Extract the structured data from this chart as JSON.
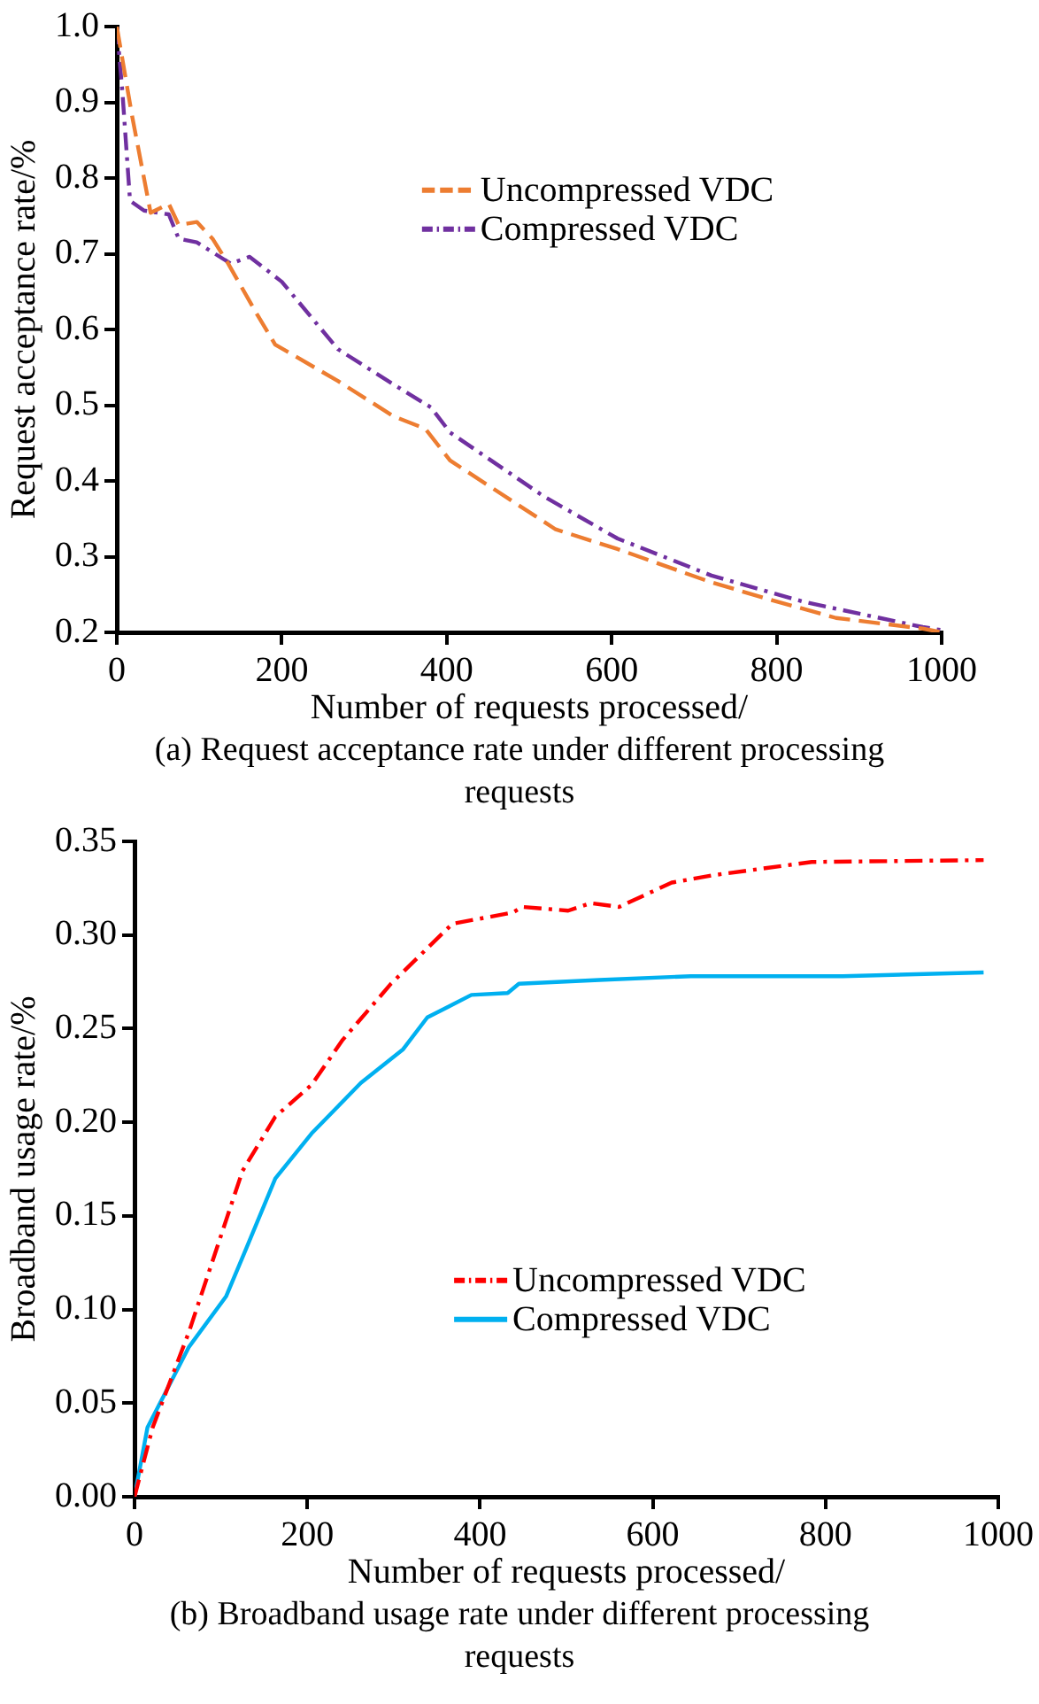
{
  "chart_data": [
    {
      "type": "line",
      "xlabel": "Number of requests processed/",
      "ylabel": "Request acceptance rate/%",
      "annotations": [
        "(a) Request acceptance rate under different processing requests"
      ],
      "xlim": [
        0,
        1000
      ],
      "xticks": [
        0,
        200,
        400,
        600,
        800,
        1000
      ],
      "ylim": [
        0.2,
        1.0
      ],
      "yticks": [
        {
          "value": 0.2,
          "label": "0.2"
        },
        {
          "value": 0.3,
          "label": "0.3"
        },
        {
          "value": 0.4,
          "label": "0.4"
        },
        {
          "value": 0.5,
          "label": "0.5"
        },
        {
          "value": 0.6,
          "label": "0.6"
        },
        {
          "value": 0.7,
          "label": "0.7"
        },
        {
          "value": 0.8,
          "label": "0.8"
        },
        {
          "value": 0.9,
          "label": "0.9"
        },
        {
          "value": 1.0,
          "label": "1.0"
        }
      ],
      "grid": false,
      "legend": "top right",
      "series": [
        {
          "name": "Uncompressed VDC",
          "color": "#ed7d31",
          "line_style": "dashed",
          "x": [
            0,
            18,
            41,
            63,
            75,
            97,
            116,
            135,
            170,
            192,
            268,
            336,
            374,
            404,
            532,
            607,
            721,
            796,
            872,
            977,
            1000
          ],
          "values": [
            1.0,
            0.885,
            0.754,
            0.766,
            0.738,
            0.742,
            0.72,
            0.687,
            0.62,
            0.58,
            0.532,
            0.485,
            0.469,
            0.427,
            0.336,
            0.31,
            0.266,
            0.242,
            0.219,
            0.205,
            0.2
          ]
        },
        {
          "name": "Compressed VDC",
          "color": "#7030a0",
          "line_style": "dashdot",
          "x": [
            0,
            7,
            16,
            33,
            63,
            75,
            97,
            138,
            161,
            200,
            268,
            336,
            381,
            404,
            517,
            607,
            721,
            834,
            977,
            1000
          ],
          "values": [
            1.0,
            0.91,
            0.77,
            0.757,
            0.752,
            0.72,
            0.715,
            0.687,
            0.696,
            0.663,
            0.574,
            0.527,
            0.497,
            0.464,
            0.38,
            0.324,
            0.275,
            0.24,
            0.207,
            0.203
          ]
        }
      ]
    },
    {
      "type": "line",
      "xlabel": "Number of requests processed/",
      "ylabel": "Broadband usage rate/%",
      "annotations": [
        "(b) Broadband usage rate under different processing requests"
      ],
      "xlim": [
        0,
        1000
      ],
      "xticks": [
        0,
        200,
        400,
        600,
        800,
        1000
      ],
      "ylim": [
        0,
        0.35
      ],
      "yticks": [
        {
          "value": 0,
          "label": "0.00"
        },
        {
          "value": 0.05,
          "label": "0.05"
        },
        {
          "value": 0.1,
          "label": "0.10"
        },
        {
          "value": 0.15,
          "label": "0.15"
        },
        {
          "value": 0.2,
          "label": "0.20"
        },
        {
          "value": 0.25,
          "label": "0.25"
        },
        {
          "value": 0.3,
          "label": "0.30"
        },
        {
          "value": 0.35,
          "label": "0.35"
        }
      ],
      "grid": false,
      "legend": "bottom right",
      "series": [
        {
          "name": "Uncompressed VDC",
          "color": "#ff0000",
          "line_style": "dashdot",
          "x": [
            0,
            21,
            63,
            125,
            163,
            205,
            241,
            297,
            368,
            438,
            449,
            502,
            528,
            561,
            622,
            671,
            784,
            983
          ],
          "values": [
            0,
            0.037,
            0.088,
            0.174,
            0.203,
            0.22,
            0.244,
            0.274,
            0.306,
            0.312,
            0.315,
            0.313,
            0.317,
            0.315,
            0.328,
            0.332,
            0.339,
            0.34
          ]
        },
        {
          "name": "Compressed VDC",
          "color": "#00b0f0",
          "line_style": "solid",
          "x": [
            0,
            15,
            63,
            106,
            127,
            163,
            205,
            262,
            311,
            339,
            390,
            432,
            445,
            538,
            644,
            820,
            983
          ],
          "values": [
            0,
            0.037,
            0.08,
            0.107,
            0.13,
            0.17,
            0.194,
            0.221,
            0.239,
            0.256,
            0.268,
            0.269,
            0.274,
            0.276,
            0.278,
            0.278,
            0.28
          ]
        }
      ]
    }
  ]
}
